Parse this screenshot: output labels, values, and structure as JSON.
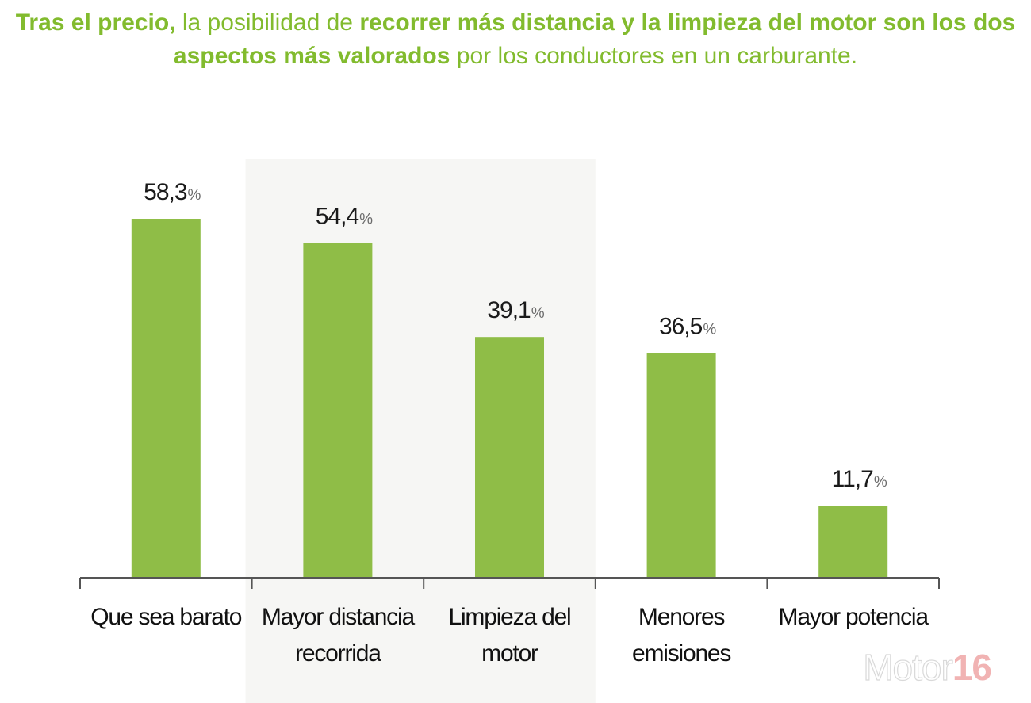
{
  "headline": {
    "segments": [
      {
        "text": "Tras el precio,",
        "bold": true
      },
      {
        "text": " la posibilidad de ",
        "bold": false
      },
      {
        "text": "recorrer más distancia y la limpieza del motor son los dos aspectos más valorados",
        "bold": true
      },
      {
        "text": " por los conductores en un carburante.",
        "bold": false
      }
    ]
  },
  "chart_data": {
    "type": "bar",
    "categories": [
      [
        "Que sea barato"
      ],
      [
        "Mayor distancia",
        "recorrida"
      ],
      [
        "Limpieza del",
        "motor"
      ],
      [
        "Menores",
        "emisiones"
      ],
      [
        "Mayor potencia"
      ]
    ],
    "values": [
      58.3,
      54.4,
      39.1,
      36.5,
      11.7
    ],
    "value_labels": [
      "58,3",
      "54,4",
      "39,1",
      "36,5",
      "11,7"
    ],
    "value_suffix": "%",
    "title": "",
    "xlabel": "",
    "ylabel": "",
    "grid": false,
    "legend": "none",
    "highlight_categories": [
      1,
      2
    ],
    "colors": {
      "bar": "#8fbd47",
      "highlight_band": "#f6f6f4",
      "axis": "#555555"
    }
  },
  "logo": {
    "word": "Motor",
    "number": "16"
  }
}
